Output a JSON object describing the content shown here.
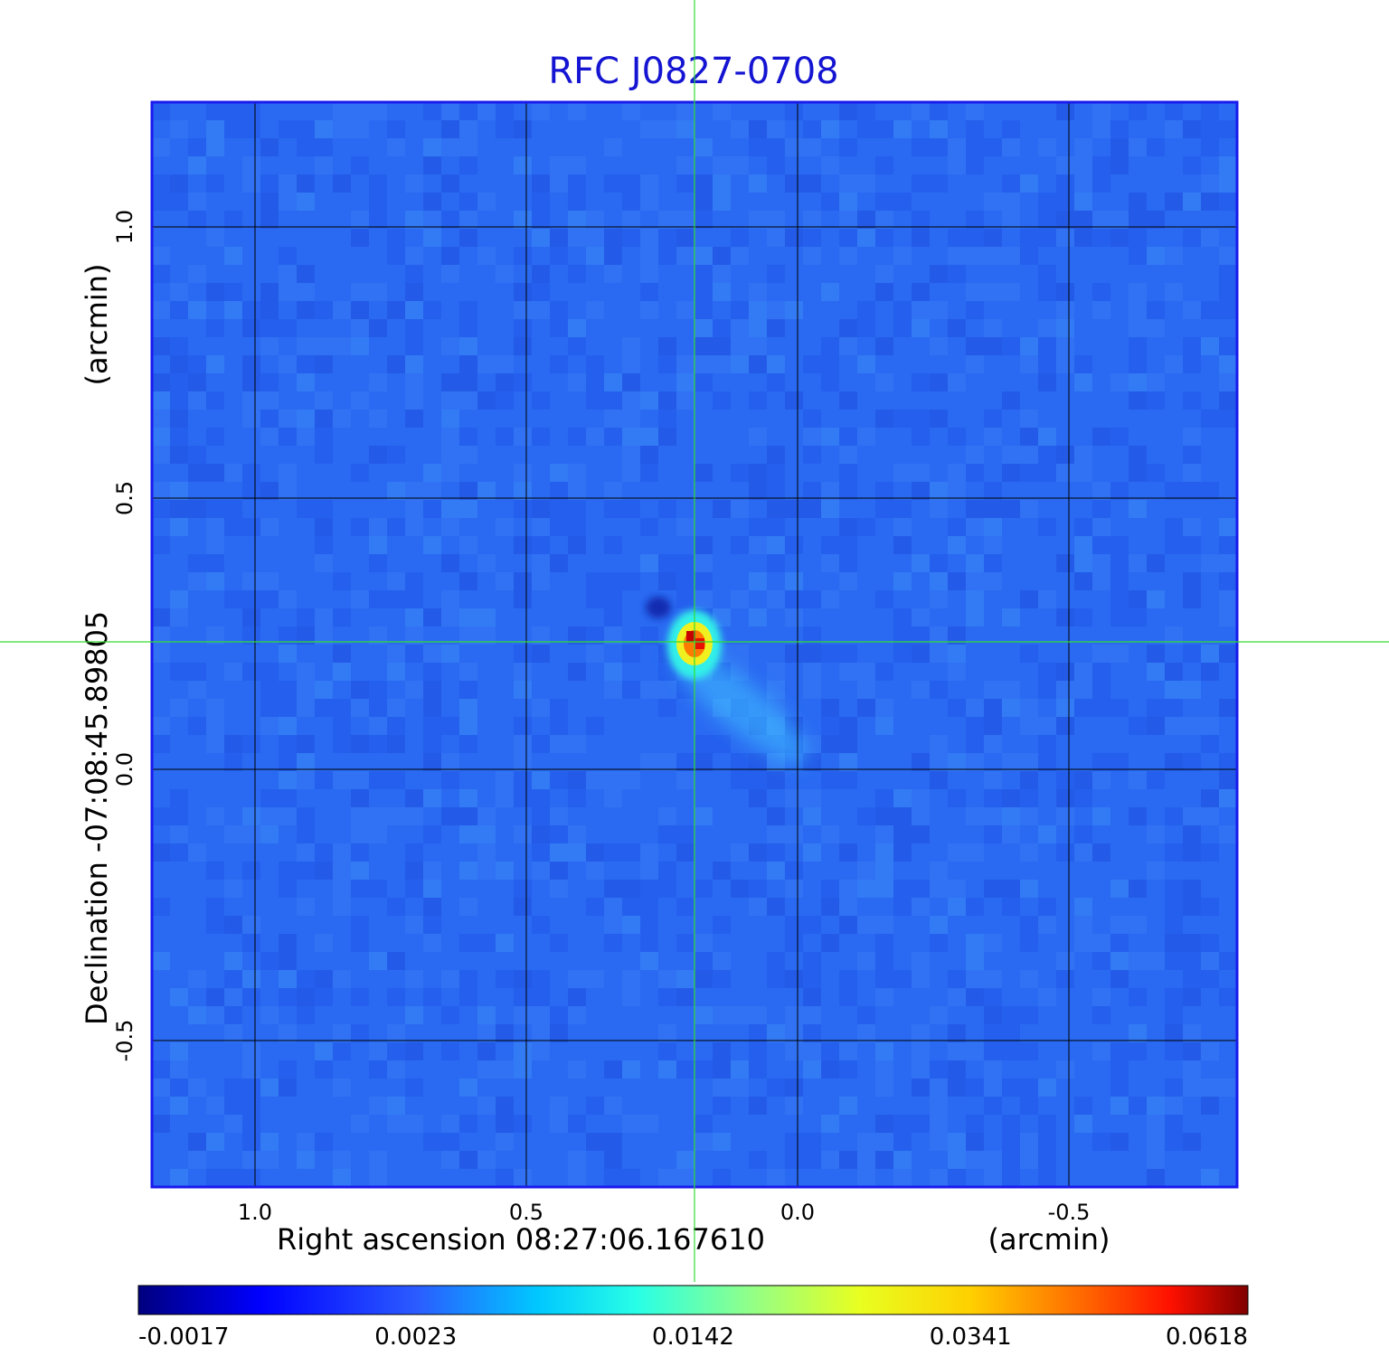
{
  "chart_data": {
    "type": "heatmap",
    "title": "RFC J0827-0708",
    "xlabel": "Right ascension  08:27:06.167610",
    "xunit": "(arcmin)",
    "ylabel": "Declination  -07:08:45.89805",
    "yunit": "(arcmin)",
    "x_range": [
      1.19,
      -0.81
    ],
    "y_range": [
      -0.77,
      1.23
    ],
    "x_ticks": [
      1.0,
      0.5,
      0.0,
      -0.5
    ],
    "x_tick_labels": [
      "1.0",
      "0.5",
      "0.0",
      "-0.5"
    ],
    "y_ticks": [
      1.0,
      0.5,
      0.0,
      -0.5
    ],
    "y_tick_labels": [
      "1.0",
      "0.5",
      "0.0",
      "-0.5"
    ],
    "grid": true,
    "crosshair": {
      "x": 0.19,
      "y": 0.235,
      "color": "#33dd33"
    },
    "source": {
      "peak_x": 0.19,
      "peak_y": 0.235,
      "peak_flux": 0.0618,
      "extension": "faint jet toward lower-right"
    },
    "colormap": "jet",
    "colorbar_ticks": [
      "-0.0017",
      "0.0023",
      "0.0142",
      "0.0341",
      "0.0618"
    ],
    "colorbar_position": "bottom"
  }
}
